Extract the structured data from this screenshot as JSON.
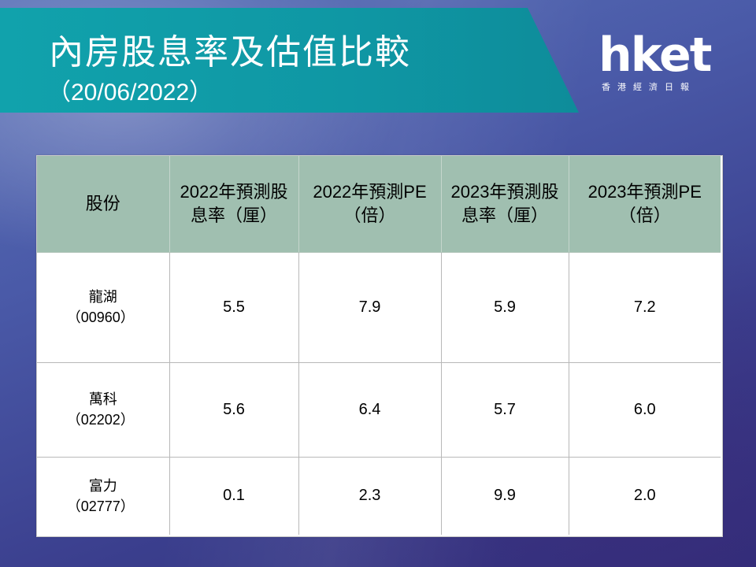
{
  "header": {
    "title": "內房股息率及估值比較",
    "date": "（20/06/2022）"
  },
  "logo": {
    "text": "hket",
    "subtitle": "香港經濟日報"
  },
  "table": {
    "columns": [
      "股份",
      "2022年預測股息率（厘）",
      "2022年預測PE（倍）",
      "2023年預測股息率（厘）",
      "2023年預測PE（倍）"
    ],
    "rows": [
      {
        "name": "龍湖",
        "code": "（00960）",
        "div2022": "5.5",
        "pe2022": "7.9",
        "div2023": "5.9",
        "pe2023": "7.2"
      },
      {
        "name": "萬科",
        "code": "（02202）",
        "div2022": "5.6",
        "pe2022": "6.4",
        "div2023": "5.7",
        "pe2023": "6.0"
      },
      {
        "name": "富力",
        "code": "（02777）",
        "div2022": "0.1",
        "pe2022": "2.3",
        "div2023": "9.9",
        "pe2023": "2.0"
      }
    ]
  },
  "colors": {
    "title_band": "#11a2ac",
    "header_row": "#a0bfb0"
  }
}
